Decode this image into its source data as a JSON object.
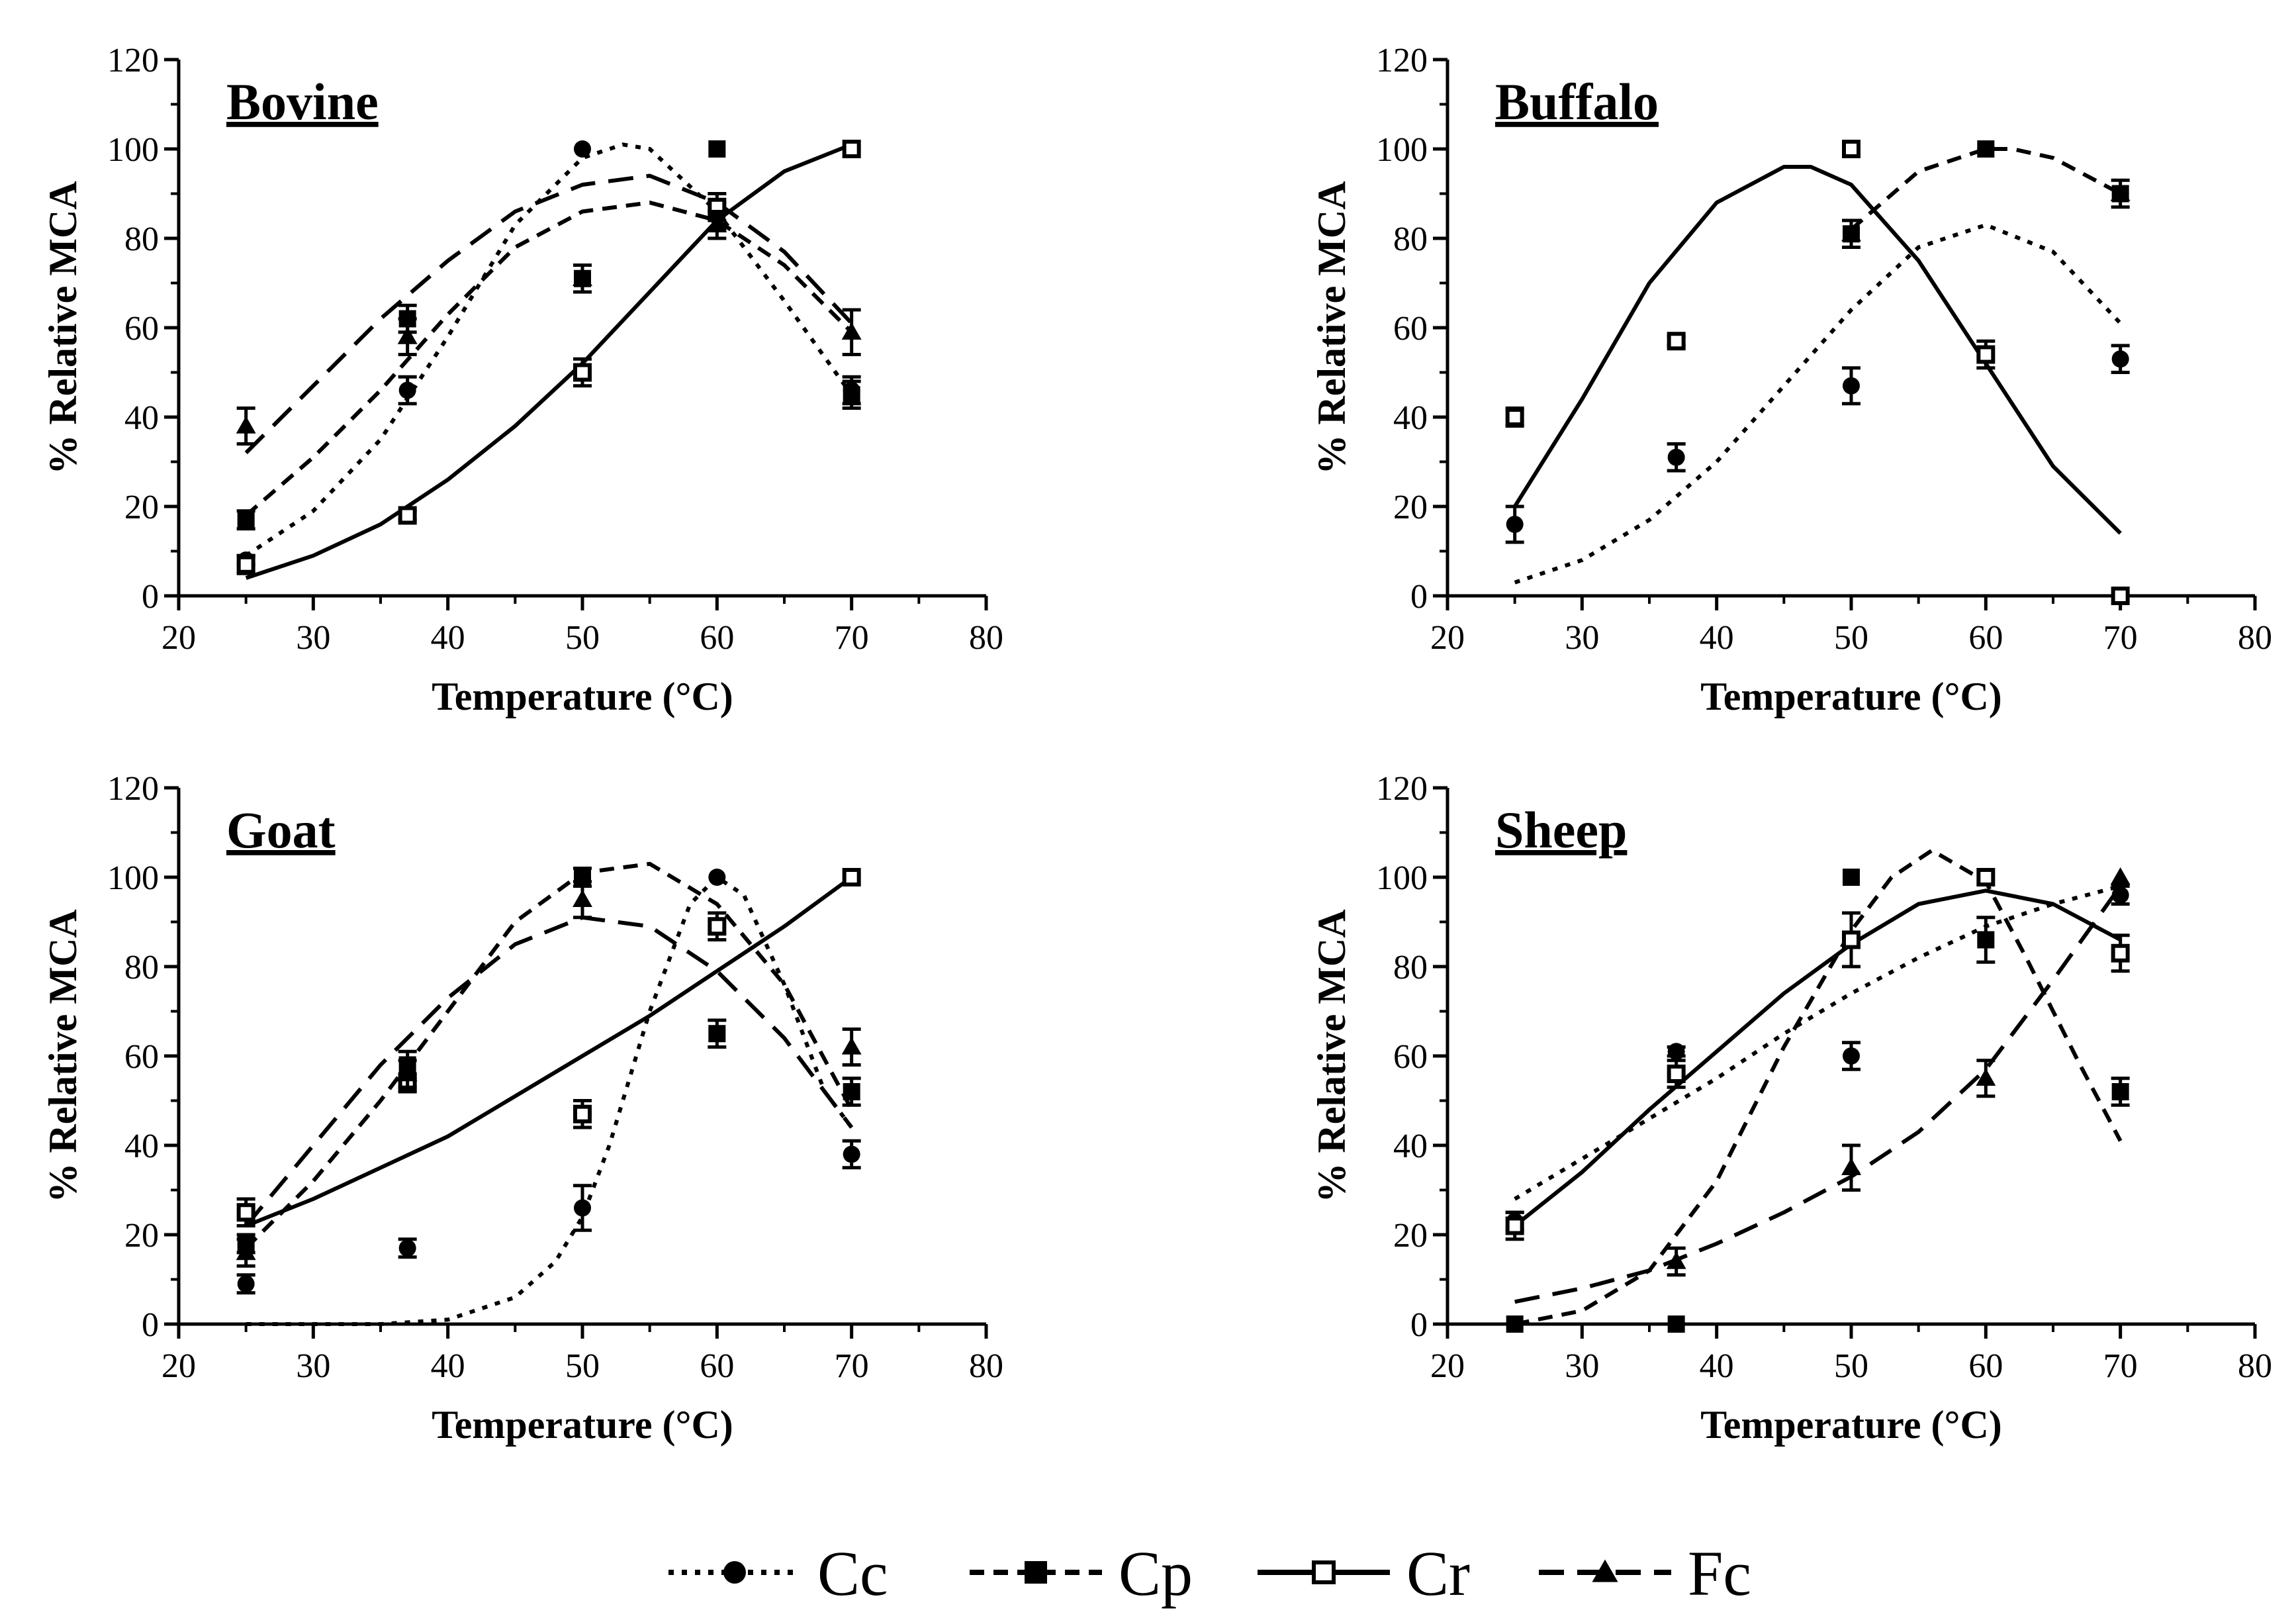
{
  "legend": [
    {
      "name": "Cc",
      "marker": "circle-filled",
      "dash": "dot"
    },
    {
      "name": "Cp",
      "marker": "square-filled",
      "dash": "dash"
    },
    {
      "name": "Cr",
      "marker": "square-open",
      "dash": "solid"
    },
    {
      "name": "Fc",
      "marker": "triangle-filled",
      "dash": "longdash"
    }
  ],
  "chart_data": [
    {
      "type": "scatter",
      "title": "Bovine",
      "xlabel": "Temperature (°C)",
      "ylabel": "% Relative MCA",
      "xlim": [
        20,
        80
      ],
      "ylim": [
        0,
        120
      ],
      "xticks": [
        20,
        30,
        40,
        50,
        60,
        70,
        80
      ],
      "yticks": [
        0,
        20,
        40,
        60,
        80,
        100,
        120
      ],
      "series": [
        {
          "name": "Cc",
          "x": [
            25,
            37,
            50,
            60,
            70
          ],
          "y": [
            8,
            46,
            100,
            85,
            46
          ],
          "err": [
            1,
            3,
            0,
            3,
            3
          ],
          "fit": {
            "x": [
              25,
              30,
              35,
              40,
              45,
              50,
              53,
              55,
              60,
              65,
              70
            ],
            "y": [
              9,
              19,
              35,
              58,
              83,
              98,
              101,
              100,
              86,
              66,
              45
            ]
          }
        },
        {
          "name": "Cp",
          "x": [
            25,
            37,
            50,
            60,
            70
          ],
          "y": [
            17,
            62,
            71,
            100,
            45
          ],
          "err": [
            2,
            3,
            3,
            0,
            3
          ],
          "fit": {
            "x": [
              25,
              30,
              35,
              40,
              45,
              50,
              55,
              60,
              65,
              70
            ],
            "y": [
              18,
              31,
              46,
              63,
              78,
              86,
              88,
              84,
              74,
              59
            ]
          }
        },
        {
          "name": "Cr",
          "x": [
            25,
            37,
            50,
            60,
            70
          ],
          "y": [
            7,
            18,
            50,
            87,
            100
          ],
          "err": [
            2,
            1,
            3,
            3,
            0
          ],
          "fit": {
            "x": [
              25,
              30,
              35,
              40,
              45,
              50,
              55,
              60,
              65,
              70
            ],
            "y": [
              4,
              9,
              16,
              26,
              38,
              52,
              68,
              84,
              95,
              101
            ]
          }
        },
        {
          "name": "Fc",
          "x": [
            25,
            37,
            50,
            60,
            70
          ],
          "y": [
            38,
            58,
            71,
            83,
            59
          ],
          "err": [
            4,
            4,
            3,
            3,
            5
          ],
          "fit": {
            "x": [
              25,
              30,
              35,
              40,
              45,
              50,
              55,
              60,
              65,
              70
            ],
            "y": [
              32,
              47,
              62,
              75,
              86,
              92,
              94,
              88,
              77,
              61
            ]
          }
        }
      ]
    },
    {
      "type": "scatter",
      "title": "Buffalo",
      "xlabel": "Temperature (°C)",
      "ylabel": "% Relative MCA",
      "xlim": [
        20,
        80
      ],
      "ylim": [
        0,
        120
      ],
      "xticks": [
        20,
        30,
        40,
        50,
        60,
        70,
        80
      ],
      "yticks": [
        0,
        20,
        40,
        60,
        80,
        100,
        120
      ],
      "series": [
        {
          "name": "Cc",
          "x": [
            25,
            37,
            50,
            60,
            70
          ],
          "y": [
            16,
            31,
            47,
            100,
            53
          ],
          "err": [
            4,
            3,
            4,
            0,
            3
          ],
          "fit": {
            "x": [
              25,
              30,
              35,
              40,
              45,
              50,
              55,
              60,
              65,
              70
            ],
            "y": [
              3,
              8,
              17,
              30,
              47,
              64,
              78,
              83,
              77,
              61
            ]
          }
        },
        {
          "name": "Cp",
          "x": [
            50,
            60,
            70
          ],
          "y": [
            81,
            100,
            90
          ],
          "err": [
            0,
            0,
            0
          ],
          "fit": {
            "x": [
              50,
              55,
              60,
              62,
              65,
              70
            ],
            "y": [
              82,
              95,
              100,
              100,
              98,
              90
            ]
          }
        },
        {
          "name": "Cr",
          "x": [
            25,
            37,
            50,
            60,
            70
          ],
          "y": [
            40,
            57,
            100,
            54,
            0
          ],
          "err": [
            2,
            1,
            0,
            3,
            0
          ],
          "fit": {
            "x": [
              25,
              30,
              35,
              40,
              45,
              47,
              50,
              55,
              60,
              65,
              70
            ],
            "y": [
              20,
              44,
              70,
              88,
              96,
              96,
              92,
              75,
              52,
              29,
              14
            ]
          }
        },
        {
          "name": "Fc",
          "x": [
            50,
            70
          ],
          "y": [
            81,
            90
          ],
          "err": [
            3,
            3
          ]
        }
      ]
    },
    {
      "type": "scatter",
      "title": "Goat",
      "xlabel": "Temperature (°C)",
      "ylabel": "% Relative MCA",
      "xlim": [
        20,
        80
      ],
      "ylim": [
        0,
        120
      ],
      "xticks": [
        20,
        30,
        40,
        50,
        60,
        70,
        80
      ],
      "yticks": [
        0,
        20,
        40,
        60,
        80,
        100,
        120
      ],
      "series": [
        {
          "name": "Cc",
          "x": [
            25,
            37,
            50,
            60,
            70
          ],
          "y": [
            9,
            17,
            26,
            100,
            38
          ],
          "err": [
            2,
            2,
            5,
            0,
            3
          ],
          "fit": {
            "x": [
              25,
              35,
              40,
              45,
              48,
              50,
              52,
              55,
              58,
              60,
              62,
              65,
              68,
              70
            ],
            "y": [
              0,
              0,
              1,
              6,
              14,
              24,
              40,
              70,
              94,
              100,
              96,
              76,
              52,
              44
            ]
          }
        },
        {
          "name": "Cp",
          "x": [
            25,
            37,
            50,
            60,
            70
          ],
          "y": [
            18,
            58,
            100,
            65,
            52
          ],
          "err": [
            2,
            3,
            2,
            3,
            3
          ],
          "fit": {
            "x": [
              25,
              30,
              35,
              40,
              45,
              50,
              55,
              60,
              65,
              70
            ],
            "y": [
              17,
              32,
              50,
              70,
              90,
              101,
              103,
              94,
              76,
              48
            ]
          }
        },
        {
          "name": "Cr",
          "x": [
            25,
            37,
            50,
            60,
            70
          ],
          "y": [
            25,
            54,
            47,
            89,
            100
          ],
          "err": [
            3,
            2,
            3,
            3,
            0
          ],
          "fit": {
            "x": [
              25,
              30,
              35,
              40,
              45,
              50,
              55,
              60,
              65,
              70
            ],
            "y": [
              22,
              28,
              35,
              42,
              51,
              60,
              69,
              79,
              89,
              100
            ]
          }
        },
        {
          "name": "Fc",
          "x": [
            25,
            37,
            50,
            70
          ],
          "y": [
            16,
            56,
            95,
            62
          ],
          "err": [
            3,
            3,
            4,
            4
          ],
          "fit": {
            "x": [
              25,
              30,
              35,
              40,
              45,
              50,
              55,
              60,
              65,
              70
            ],
            "y": [
              22,
              40,
              58,
              73,
              85,
              91,
              89,
              79,
              64,
              44
            ]
          }
        }
      ]
    },
    {
      "type": "scatter",
      "title": "Sheep",
      "xlabel": "Temperature (°C)",
      "ylabel": "% Relative MCA",
      "xlim": [
        20,
        80
      ],
      "ylim": [
        0,
        120
      ],
      "xticks": [
        20,
        30,
        40,
        50,
        60,
        70,
        80
      ],
      "yticks": [
        0,
        20,
        40,
        60,
        80,
        100,
        120
      ],
      "series": [
        {
          "name": "Cc",
          "x": [
            25,
            37,
            50,
            60,
            70
          ],
          "y": [
            23,
            61,
            60,
            100,
            96
          ],
          "err": [
            2,
            1,
            3,
            0,
            2
          ],
          "fit": {
            "x": [
              25,
              30,
              35,
              40,
              45,
              50,
              55,
              60,
              65,
              70
            ],
            "y": [
              28,
              37,
              46,
              55,
              65,
              74,
              82,
              89,
              94,
              98
            ]
          }
        },
        {
          "name": "Cp",
          "x": [
            25,
            37,
            50,
            60,
            70
          ],
          "y": [
            0,
            0,
            100,
            86,
            52
          ],
          "err": [
            0,
            0,
            0,
            5,
            3
          ],
          "fit": {
            "x": [
              25,
              30,
              35,
              40,
              45,
              50,
              53,
              56,
              60,
              63,
              67,
              70
            ],
            "y": [
              0,
              3,
              12,
              32,
              62,
              88,
              100,
              106,
              99,
              82,
              58,
              41
            ]
          }
        },
        {
          "name": "Cr",
          "x": [
            25,
            37,
            50,
            60,
            70
          ],
          "y": [
            22,
            56,
            86,
            100,
            83
          ],
          "err": [
            3,
            3,
            6,
            0,
            4
          ],
          "fit": {
            "x": [
              25,
              30,
              35,
              40,
              45,
              50,
              55,
              60,
              65,
              70
            ],
            "y": [
              22,
              34,
              48,
              61,
              74,
              85,
              94,
              97,
              94,
              86
            ]
          }
        },
        {
          "name": "Fc",
          "x": [
            37,
            50,
            60,
            70
          ],
          "y": [
            14,
            35,
            55,
            100
          ],
          "err": [
            3,
            5,
            4,
            0
          ],
          "fit": {
            "x": [
              25,
              30,
              35,
              40,
              45,
              50,
              55,
              60,
              65,
              70
            ],
            "y": [
              5,
              8,
              12,
              18,
              25,
              33,
              43,
              57,
              77,
              98
            ]
          }
        }
      ]
    }
  ]
}
